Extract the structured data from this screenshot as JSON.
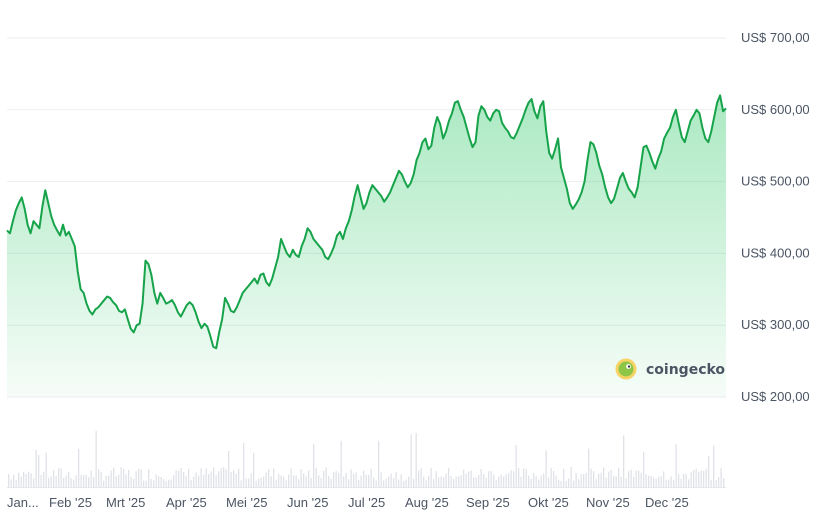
{
  "chart_data": {
    "type": "area",
    "watermark": "coingecko",
    "y_tick_labels": [
      "US$ 700,00",
      "US$ 600,00",
      "US$ 500,00",
      "US$ 400,00",
      "US$ 300,00",
      "US$ 200,00"
    ],
    "y_ticks": [
      700,
      600,
      500,
      400,
      300,
      200
    ],
    "ylim": [
      200,
      700
    ],
    "x_tick_labels": [
      "Jan...",
      "Feb '25",
      "Mrt '25",
      "Apr '25",
      "Mei '25",
      "Jun '25",
      "Jul '25",
      "Aug '25",
      "Sep '25",
      "Okt '25",
      "Nov '25",
      "Dec '25"
    ],
    "grid": true,
    "y_axis_position": "right",
    "has_volume_bars": true,
    "line_color": "#16a34a",
    "fill_color": "#22c55e",
    "series": [
      {
        "values": [
          432,
          428,
          445,
          460,
          470,
          478,
          462,
          440,
          428,
          445,
          440,
          435,
          465,
          488,
          470,
          452,
          440,
          432,
          425,
          440,
          425,
          430,
          420,
          410,
          375,
          350,
          345,
          330,
          320,
          315,
          322,
          325,
          330,
          335,
          340,
          338,
          332,
          328,
          320,
          318,
          322,
          308,
          295,
          290,
          300,
          302,
          330,
          390,
          385,
          370,
          345,
          330,
          345,
          338,
          330,
          332,
          335,
          328,
          318,
          312,
          320,
          328,
          332,
          328,
          318,
          305,
          296,
          302,
          298,
          285,
          270,
          268,
          290,
          308,
          338,
          330,
          320,
          318,
          325,
          335,
          345,
          350,
          355,
          360,
          365,
          358,
          370,
          372,
          360,
          355,
          365,
          380,
          395,
          420,
          410,
          400,
          395,
          405,
          398,
          395,
          410,
          420,
          435,
          430,
          420,
          415,
          410,
          405,
          395,
          392,
          400,
          410,
          425,
          430,
          420,
          435,
          445,
          460,
          480,
          495,
          478,
          462,
          470,
          485,
          495,
          490,
          485,
          480,
          472,
          478,
          485,
          495,
          505,
          515,
          510,
          500,
          492,
          498,
          510,
          530,
          540,
          555,
          560,
          545,
          550,
          575,
          590,
          580,
          560,
          570,
          585,
          595,
          610,
          612,
          600,
          590,
          575,
          560,
          548,
          555,
          592,
          605,
          600,
          590,
          585,
          595,
          600,
          598,
          582,
          575,
          570,
          562,
          560,
          568,
          578,
          588,
          600,
          610,
          615,
          598,
          588,
          605,
          612,
          570,
          540,
          532,
          545,
          560,
          520,
          505,
          490,
          470,
          462,
          468,
          475,
          485,
          500,
          530,
          555,
          552,
          540,
          522,
          510,
          492,
          478,
          470,
          476,
          490,
          505,
          512,
          500,
          490,
          485,
          478,
          492,
          520,
          548,
          550,
          540,
          528,
          518,
          532,
          542,
          560,
          568,
          575,
          590,
          600,
          580,
          562,
          555,
          570,
          585,
          592,
          600,
          595,
          575,
          560,
          555,
          570,
          590,
          610,
          620,
          598,
          602
        ]
      }
    ]
  }
}
